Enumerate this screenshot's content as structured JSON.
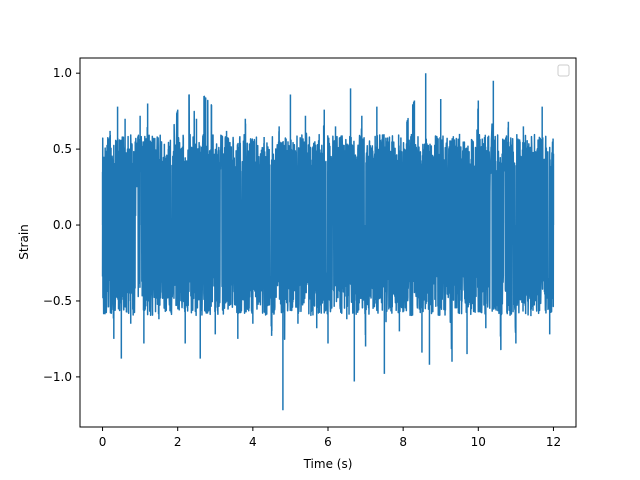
{
  "chart_data": {
    "type": "line",
    "title": "",
    "xlabel": "Time (s)",
    "ylabel": "Strain",
    "xlim": [
      -0.6,
      12.6
    ],
    "ylim": [
      -1.33,
      1.1
    ],
    "x_ticks": [
      0,
      2,
      4,
      6,
      8,
      10,
      12
    ],
    "x_tick_labels": [
      "0",
      "2",
      "4",
      "6",
      "8",
      "10",
      "12"
    ],
    "y_ticks": [
      -1.0,
      -0.5,
      0.0,
      0.5,
      1.0
    ],
    "y_tick_labels": [
      "−1.0",
      "−0.5",
      "0.0",
      "0.5",
      "1.0"
    ],
    "grid": false,
    "legend": {
      "placement": "upper right",
      "entries": []
    },
    "series": [
      {
        "color": "#1f77b4",
        "description_of_shape": "dense noisy signal spanning the full time range",
        "x_range": [
          0,
          12
        ],
        "approx_y_range": [
          -1.22,
          1.0
        ],
        "sample_envelope": [
          {
            "x": 0.0,
            "y": 0.35
          },
          {
            "x": 0.05,
            "y": -0.5
          },
          {
            "x": 0.2,
            "y": 0.62
          },
          {
            "x": 0.3,
            "y": -0.75
          },
          {
            "x": 0.4,
            "y": 0.78
          },
          {
            "x": 0.5,
            "y": -0.88
          },
          {
            "x": 0.6,
            "y": 0.7
          },
          {
            "x": 0.75,
            "y": -0.65
          },
          {
            "x": 1.0,
            "y": 0.72
          },
          {
            "x": 1.1,
            "y": -0.78
          },
          {
            "x": 1.2,
            "y": 0.8
          },
          {
            "x": 1.5,
            "y": -0.62
          },
          {
            "x": 1.75,
            "y": 0.5
          },
          {
            "x": 2.0,
            "y": 0.76
          },
          {
            "x": 2.2,
            "y": -0.78
          },
          {
            "x": 2.3,
            "y": 0.86
          },
          {
            "x": 2.5,
            "y": 0.7
          },
          {
            "x": 2.6,
            "y": -0.88
          },
          {
            "x": 2.7,
            "y": 0.85
          },
          {
            "x": 2.9,
            "y": 0.79
          },
          {
            "x": 3.0,
            "y": -0.72
          },
          {
            "x": 3.3,
            "y": 0.62
          },
          {
            "x": 3.6,
            "y": -0.75
          },
          {
            "x": 3.8,
            "y": 0.7
          },
          {
            "x": 4.0,
            "y": -0.65
          },
          {
            "x": 4.3,
            "y": 0.58
          },
          {
            "x": 4.5,
            "y": -0.73
          },
          {
            "x": 4.7,
            "y": 0.65
          },
          {
            "x": 4.8,
            "y": -1.22
          },
          {
            "x": 5.0,
            "y": 0.86
          },
          {
            "x": 5.2,
            "y": -0.65
          },
          {
            "x": 5.4,
            "y": 0.72
          },
          {
            "x": 5.7,
            "y": -0.68
          },
          {
            "x": 5.9,
            "y": 0.76
          },
          {
            "x": 6.0,
            "y": -0.78
          },
          {
            "x": 6.2,
            "y": 0.65
          },
          {
            "x": 6.5,
            "y": -0.62
          },
          {
            "x": 6.6,
            "y": 0.9
          },
          {
            "x": 6.7,
            "y": -1.03
          },
          {
            "x": 6.9,
            "y": 0.72
          },
          {
            "x": 7.0,
            "y": -0.8
          },
          {
            "x": 7.3,
            "y": 0.78
          },
          {
            "x": 7.5,
            "y": -0.98
          },
          {
            "x": 7.7,
            "y": 0.55
          },
          {
            "x": 7.9,
            "y": -0.7
          },
          {
            "x": 8.1,
            "y": 0.68
          },
          {
            "x": 8.3,
            "y": 0.82
          },
          {
            "x": 8.5,
            "y": -0.84
          },
          {
            "x": 8.6,
            "y": 1.0
          },
          {
            "x": 8.7,
            "y": -0.92
          },
          {
            "x": 9.0,
            "y": 0.83
          },
          {
            "x": 9.3,
            "y": -0.9
          },
          {
            "x": 9.5,
            "y": 0.6
          },
          {
            "x": 9.7,
            "y": -0.85
          },
          {
            "x": 10.0,
            "y": 0.82
          },
          {
            "x": 10.2,
            "y": -0.68
          },
          {
            "x": 10.4,
            "y": 0.95
          },
          {
            "x": 10.6,
            "y": -0.82
          },
          {
            "x": 10.8,
            "y": 0.68
          },
          {
            "x": 11.0,
            "y": -0.78
          },
          {
            "x": 11.2,
            "y": 0.65
          },
          {
            "x": 11.4,
            "y": -0.6
          },
          {
            "x": 11.7,
            "y": 0.78
          },
          {
            "x": 11.9,
            "y": -0.72
          },
          {
            "x": 12.0,
            "y": 0.4
          }
        ]
      }
    ]
  }
}
